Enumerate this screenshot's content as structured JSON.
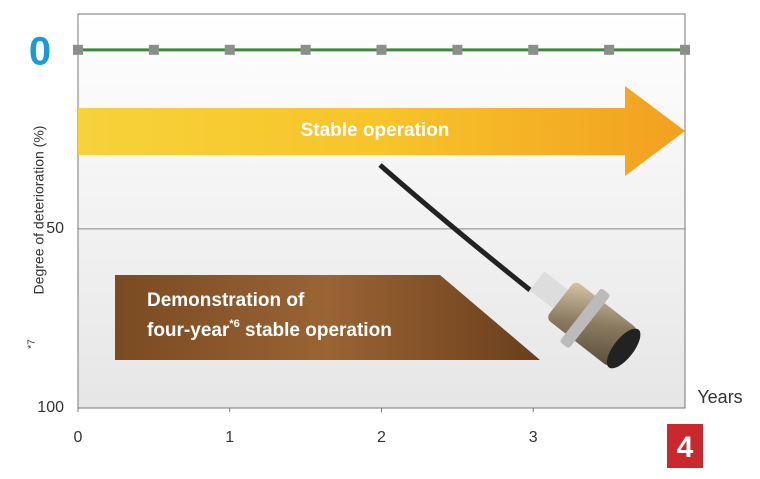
{
  "chart_data": {
    "type": "line",
    "x": [
      0,
      0.5,
      1,
      1.5,
      2,
      2.5,
      3,
      3.5,
      4
    ],
    "values": [
      0,
      0,
      0,
      0,
      0,
      0,
      0,
      0,
      0
    ],
    "color": "#3a8a3a",
    "marker_color": "#8a8f8a",
    "xlim": [
      0,
      4
    ],
    "xticks": [
      0,
      1,
      2,
      3,
      4
    ],
    "ylim": [
      100,
      -10
    ],
    "yticks": [
      0,
      50,
      100
    ],
    "ylabel": "Degree of deterioration (%)",
    "ylabel_note": "*7",
    "xlabel": "Years",
    "arrow_label": "Stable operation",
    "box_line1": "Demonstration of",
    "box_line2_start": "four-year",
    "box_line2_note": "*6",
    "box_line2_end": " stable operation",
    "grid": true
  }
}
